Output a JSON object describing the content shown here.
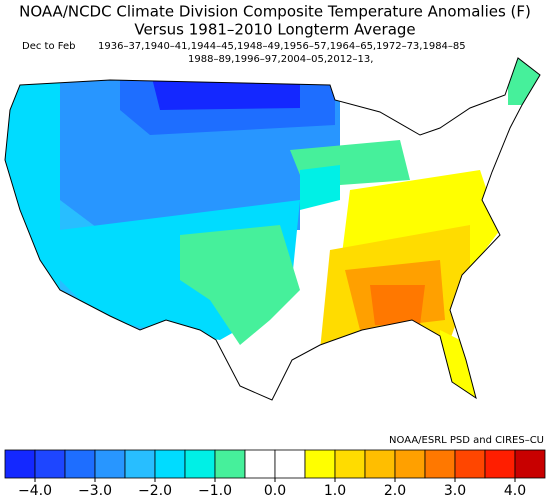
{
  "header": {
    "title": "NOAA/NCDC Climate Division Composite Temperature Anomalies (F)",
    "subtitle": "Versus 1981–2010 Longterm Average",
    "period_label": "Dec to Feb",
    "years_line1": "1936–37,1940–41,1944–45,1948–49,1956–57,1964–65,1972–73,1984–85",
    "years_line2": "1988–89,1996–97,2004–05,2012–13,"
  },
  "credit": "NOAA/ESRL PSD and CIRES–CU",
  "colorbar": {
    "range": [
      -4.5,
      4.5
    ],
    "colors": [
      "#1428ff",
      "#1e46ff",
      "#1e6eff",
      "#2896ff",
      "#28beff",
      "#00dcff",
      "#00f0e6",
      "#46f09b",
      "#ffffff",
      "#ffffff",
      "#ffff00",
      "#ffdc00",
      "#ffbe00",
      "#ffa000",
      "#ff7800",
      "#ff4600",
      "#ff1e00",
      "#c80000"
    ],
    "ticks": [
      {
        "value": -4,
        "label": "−4.0"
      },
      {
        "value": -3,
        "label": "−3.0"
      },
      {
        "value": -2,
        "label": "−2.0"
      },
      {
        "value": -1,
        "label": "−1.0"
      },
      {
        "value": 0,
        "label": "0.0"
      },
      {
        "value": 1,
        "label": "1.0"
      },
      {
        "value": 2,
        "label": "2.0"
      },
      {
        "value": 3,
        "label": "3.0"
      },
      {
        "value": 4,
        "label": "4.0"
      }
    ]
  }
}
